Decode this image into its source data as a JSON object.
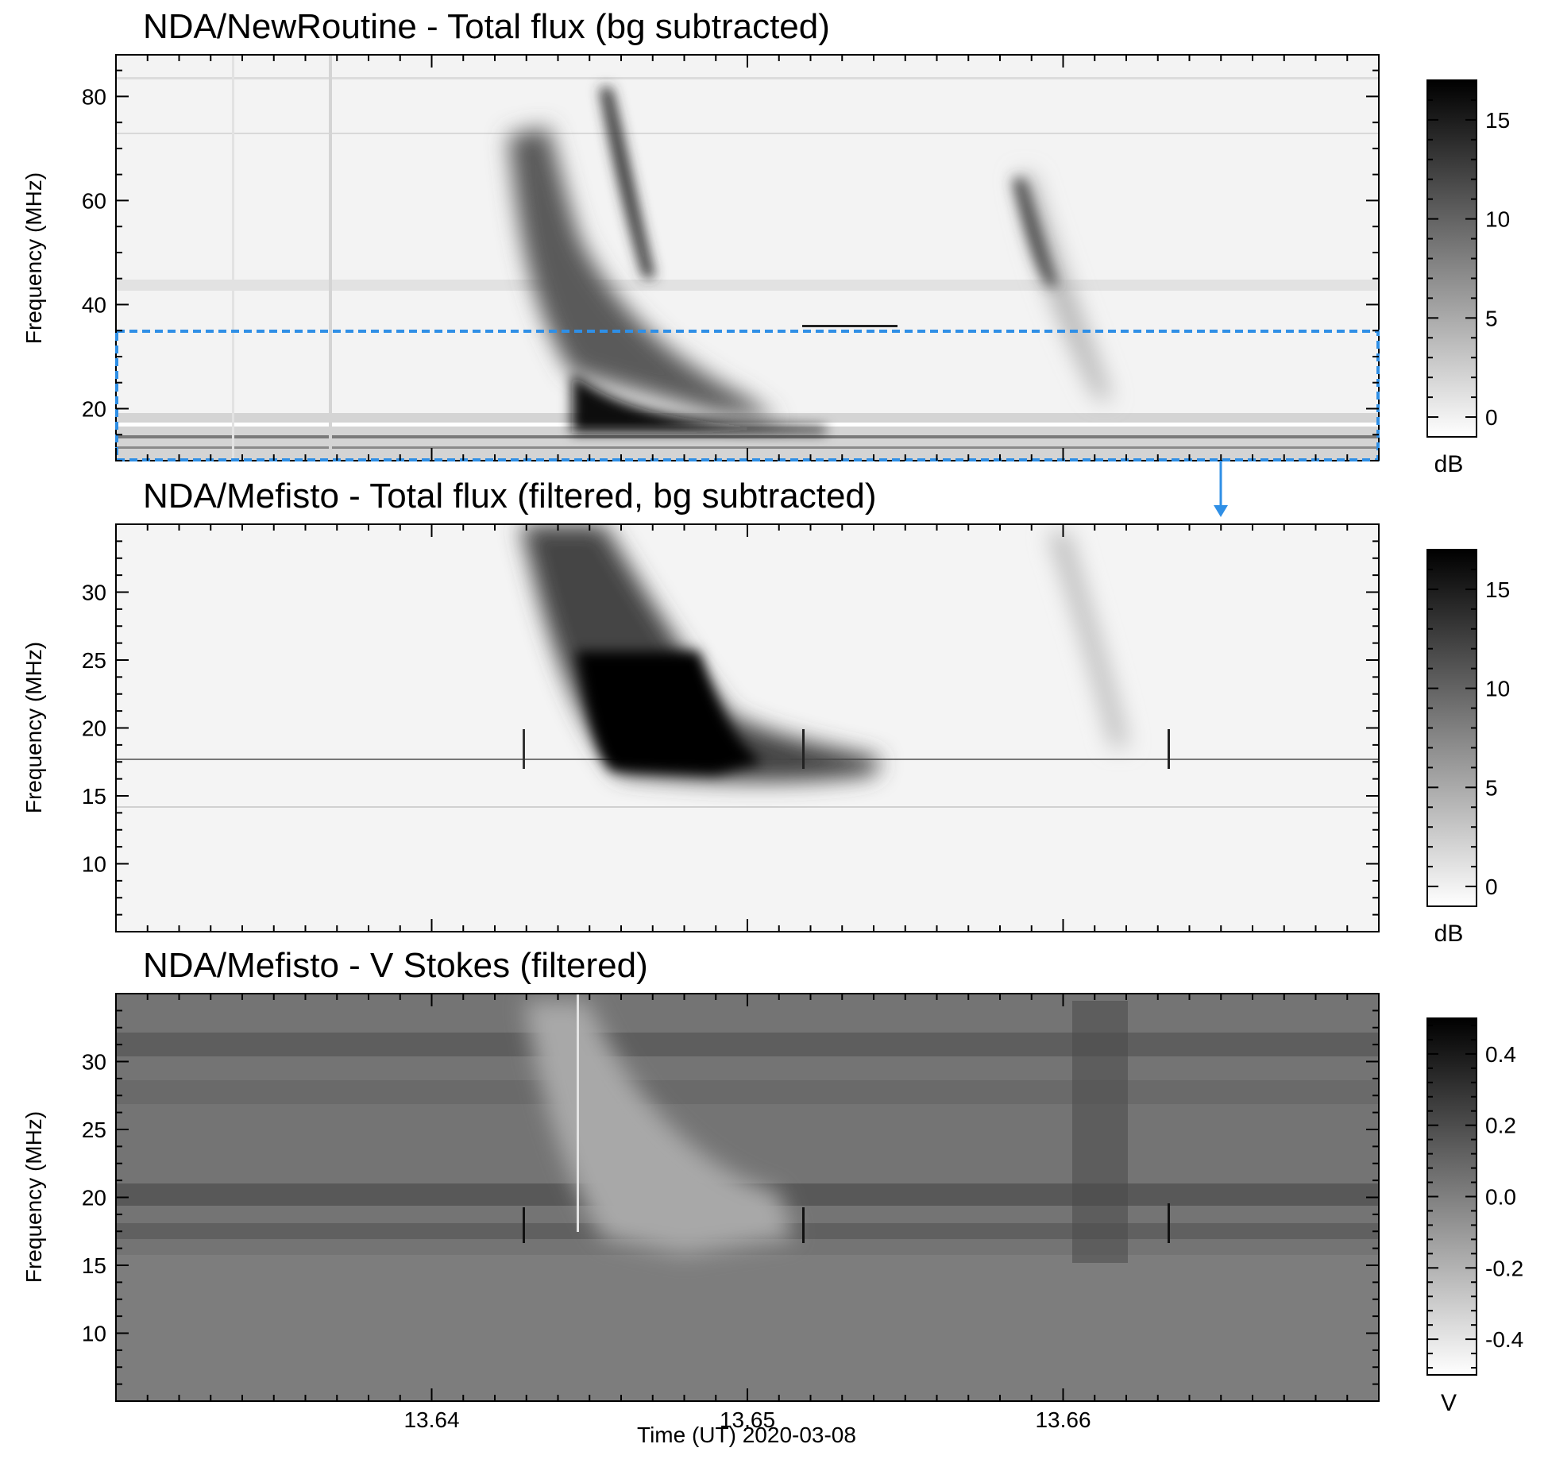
{
  "figure": {
    "xlabel": "Time (UT) 2020-03-08",
    "x_ticks": [
      "13.64",
      "13.65",
      "13.66"
    ]
  },
  "chart_data": [
    {
      "type": "heatmap",
      "title": "NDA/NewRoutine - Total flux (bg subtracted)",
      "ylabel": "Frequency (MHz)",
      "xlim": [
        13.63,
        13.67
      ],
      "ylim": [
        10,
        88
      ],
      "y_ticks": [
        20,
        40,
        60,
        80
      ],
      "colorbar": {
        "unit": "dB",
        "ticks": [
          0,
          5,
          10,
          15
        ],
        "range": [
          -1,
          17
        ],
        "colors": [
          "#ffffff",
          "#000000"
        ]
      },
      "background": "#f3f3f3",
      "highlight_box": {
        "x": [
          13.63,
          13.67
        ],
        "y": [
          10,
          35
        ],
        "color": "#2f8fe6",
        "style": "dashed"
      }
    },
    {
      "type": "heatmap",
      "title": "NDA/Mefisto - Total flux (filtered, bg subtracted)",
      "ylabel": "Frequency (MHz)",
      "xlim": [
        13.63,
        13.67
      ],
      "ylim": [
        5,
        35
      ],
      "y_ticks": [
        10,
        15,
        20,
        25,
        30
      ],
      "colorbar": {
        "unit": "dB",
        "ticks": [
          0,
          5,
          10,
          15
        ],
        "range": [
          -1,
          17
        ],
        "colors": [
          "#ffffff",
          "#000000"
        ]
      },
      "background": "#f4f4f4"
    },
    {
      "type": "heatmap",
      "title": "NDA/Mefisto - V Stokes (filtered)",
      "ylabel": "Frequency (MHz)",
      "xlim": [
        13.63,
        13.67
      ],
      "ylim": [
        5,
        35
      ],
      "y_ticks": [
        10,
        15,
        20,
        25,
        30
      ],
      "colorbar": {
        "unit": "V",
        "ticks": [
          "0.4",
          "0.2",
          "0.0",
          "-0.2",
          "-0.4"
        ],
        "tick_values": [
          0.4,
          0.2,
          0.0,
          -0.2,
          -0.4
        ],
        "range": [
          -0.5,
          0.5
        ],
        "colors": [
          "#ffffff",
          "#000000"
        ]
      },
      "background": "#747474"
    }
  ]
}
